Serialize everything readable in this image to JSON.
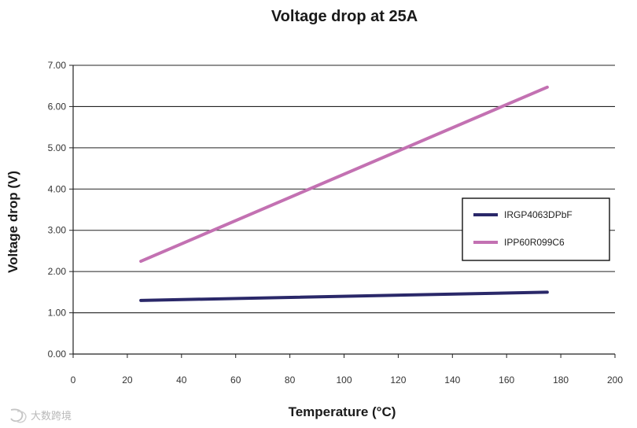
{
  "chart_data": {
    "type": "line",
    "title": "Voltage drop at 25A",
    "xlabel": "Temperature (°C)",
    "ylabel": "Voltage drop (V)",
    "xlim": [
      0,
      200
    ],
    "ylim": [
      0,
      7
    ],
    "x_ticks": [
      "0",
      "20",
      "40",
      "60",
      "80",
      "100",
      "120",
      "140",
      "160",
      "180",
      "200"
    ],
    "y_ticks": [
      "0.00",
      "1.00",
      "2.00",
      "3.00",
      "4.00",
      "5.00",
      "6.00",
      "7.00"
    ],
    "grid": "horizontal",
    "legend_position": "right",
    "series": [
      {
        "name": "IRGP4063DPbF",
        "color": "#2a2869",
        "points": [
          [
            25,
            1.3
          ],
          [
            175,
            1.5
          ]
        ]
      },
      {
        "name": "IPP60R099C6",
        "color": "#c371b2",
        "points": [
          [
            25,
            2.25
          ],
          [
            175,
            6.47
          ]
        ]
      }
    ]
  },
  "watermark": {
    "logo_icon": "brand-logo-icon",
    "text": "大数跨境"
  }
}
